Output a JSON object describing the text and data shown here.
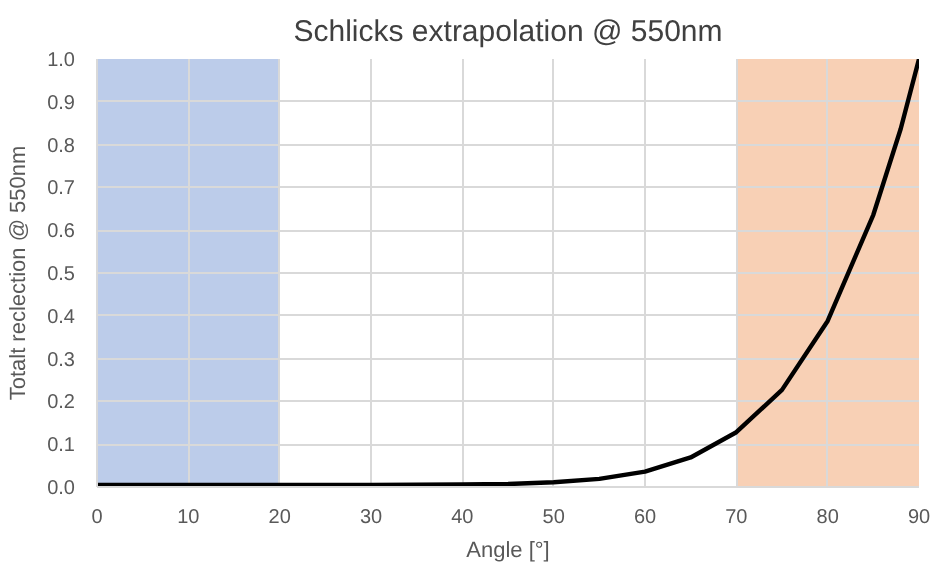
{
  "chart_data": {
    "type": "line",
    "title": "Schlicks extrapolation @ 550nm",
    "xlabel": "Angle [°]",
    "ylabel": "Totalt reclection @ 550nm",
    "x": [
      0,
      10,
      20,
      30,
      40,
      45,
      50,
      55,
      60,
      65,
      70,
      75,
      80,
      85,
      88,
      90
    ],
    "series": [
      {
        "color": "#000000",
        "values": [
          0.005,
          0.005,
          0.005,
          0.005,
          0.006,
          0.007,
          0.011,
          0.019,
          0.036,
          0.069,
          0.128,
          0.227,
          0.388,
          0.636,
          0.837,
          1.0
        ]
      }
    ],
    "xlim": [
      0,
      90
    ],
    "ylim": [
      0,
      1
    ],
    "xticks": [
      0,
      10,
      20,
      30,
      40,
      50,
      60,
      70,
      80,
      90
    ],
    "yticks": [
      {
        "value": 0,
        "label": "0.0"
      },
      0.1,
      0.2,
      0.3,
      0.4,
      0.5,
      0.6,
      0.7,
      0.8,
      0.9,
      {
        "value": 1,
        "label": "1.0"
      }
    ],
    "bands": [
      {
        "axis": "x",
        "from": 0,
        "to": 20,
        "color": "#8faadc"
      },
      {
        "axis": "x",
        "from": 70,
        "to": 90,
        "color": "#f4b183"
      }
    ],
    "grid": true,
    "marker": "none",
    "line_style": "solid"
  }
}
